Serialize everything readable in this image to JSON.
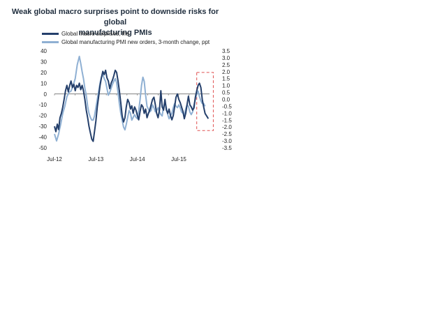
{
  "chart_data": {
    "type": "line",
    "title": [
      "Weak global macro surprises point to downside risks for global",
      "manufacturing PMIs"
    ],
    "colors": {
      "dark": "#243f6b",
      "light": "#8fb0d3",
      "highlight": "#e05050"
    },
    "y_left": {
      "min": -50,
      "max": 40,
      "ticks": [
        40,
        30,
        20,
        10,
        0,
        -10,
        -20,
        -30,
        -40,
        -50
      ]
    },
    "y_right": {
      "min": -3.5,
      "max": 3.5,
      "ticks": [
        3.5,
        3.0,
        2.5,
        2.0,
        1.5,
        1.0,
        0.5,
        0.0,
        -0.5,
        -1.0,
        -1.5,
        -2.0,
        -2.5,
        -3.0,
        -3.5
      ]
    },
    "x_ticks": [
      {
        "label": "Jul-12",
        "t": 0
      },
      {
        "label": "Jul-13",
        "t": 12
      },
      {
        "label": "Jul-14",
        "t": 24
      },
      {
        "label": "Jul-15",
        "t": 36
      }
    ],
    "x_range": [
      0,
      44.5
    ],
    "highlight_t": [
      41.2,
      46.0
    ],
    "highlight_y": [
      20,
      -34
    ],
    "series": [
      {
        "name": "Global macro surprises, lhs",
        "axis": "left",
        "points": [
          [
            0,
            -30
          ],
          [
            0.4,
            -35
          ],
          [
            0.8,
            -28
          ],
          [
            1.2,
            -33
          ],
          [
            1.6,
            -22
          ],
          [
            2.0,
            -18
          ],
          [
            2.4,
            -12
          ],
          [
            2.8,
            -5
          ],
          [
            3.2,
            3
          ],
          [
            3.6,
            8
          ],
          [
            4.0,
            2
          ],
          [
            4.4,
            8
          ],
          [
            4.8,
            12
          ],
          [
            5.2,
            6
          ],
          [
            5.6,
            9
          ],
          [
            6.0,
            3
          ],
          [
            6.4,
            8
          ],
          [
            6.8,
            6
          ],
          [
            7.2,
            10
          ],
          [
            7.6,
            4
          ],
          [
            8.0,
            8
          ],
          [
            8.4,
            3
          ],
          [
            8.8,
            -5
          ],
          [
            9.2,
            -15
          ],
          [
            9.6,
            -22
          ],
          [
            10.0,
            -30
          ],
          [
            10.4,
            -36
          ],
          [
            10.8,
            -42
          ],
          [
            11.2,
            -44
          ],
          [
            11.6,
            -35
          ],
          [
            12.0,
            -25
          ],
          [
            12.4,
            -12
          ],
          [
            12.8,
            -2
          ],
          [
            13.2,
            8
          ],
          [
            13.6,
            15
          ],
          [
            14.0,
            21
          ],
          [
            14.4,
            18
          ],
          [
            14.8,
            22
          ],
          [
            15.2,
            15
          ],
          [
            15.6,
            12
          ],
          [
            16.0,
            5
          ],
          [
            16.4,
            10
          ],
          [
            16.8,
            13
          ],
          [
            17.2,
            17
          ],
          [
            17.6,
            22
          ],
          [
            18.0,
            20
          ],
          [
            18.4,
            12
          ],
          [
            18.8,
            3
          ],
          [
            19.2,
            -8
          ],
          [
            19.6,
            -20
          ],
          [
            20.0,
            -26
          ],
          [
            20.4,
            -22
          ],
          [
            20.8,
            -12
          ],
          [
            21.2,
            -5
          ],
          [
            21.6,
            -8
          ],
          [
            22.0,
            -14
          ],
          [
            22.4,
            -11
          ],
          [
            22.8,
            -18
          ],
          [
            23.2,
            -12
          ],
          [
            23.6,
            -15
          ],
          [
            24.0,
            -20
          ],
          [
            24.4,
            -24
          ],
          [
            24.8,
            -16
          ],
          [
            25.2,
            -10
          ],
          [
            25.6,
            -12
          ],
          [
            26.0,
            -18
          ],
          [
            26.4,
            -14
          ],
          [
            26.8,
            -22
          ],
          [
            27.2,
            -18
          ],
          [
            27.6,
            -15
          ],
          [
            28.0,
            -10
          ],
          [
            28.4,
            -5
          ],
          [
            28.8,
            -3
          ],
          [
            29.2,
            -10
          ],
          [
            29.6,
            -18
          ],
          [
            30.0,
            -22
          ],
          [
            30.4,
            -15
          ],
          [
            30.8,
            3
          ],
          [
            31.2,
            -12
          ],
          [
            31.6,
            -15
          ],
          [
            32.0,
            -5
          ],
          [
            32.4,
            -15
          ],
          [
            32.8,
            -18
          ],
          [
            33.2,
            -14
          ],
          [
            33.6,
            -20
          ],
          [
            34.0,
            -24
          ],
          [
            34.4,
            -20
          ],
          [
            34.8,
            -12
          ],
          [
            35.2,
            -3
          ],
          [
            35.6,
            0
          ],
          [
            36.0,
            -5
          ],
          [
            36.4,
            -8
          ],
          [
            36.8,
            -12
          ],
          [
            37.2,
            -16
          ],
          [
            37.6,
            -23
          ],
          [
            38.0,
            -18
          ],
          [
            38.4,
            -10
          ],
          [
            38.8,
            -2
          ],
          [
            39.2,
            -10
          ],
          [
            39.6,
            -12
          ],
          [
            40.0,
            -15
          ],
          [
            40.4,
            -13
          ],
          [
            40.8,
            -3
          ],
          [
            41.2,
            3
          ],
          [
            41.6,
            8
          ],
          [
            42.0,
            10
          ],
          [
            42.4,
            6
          ],
          [
            42.8,
            -5
          ],
          [
            43.2,
            -12
          ],
          [
            43.6,
            -18
          ],
          [
            44.0,
            -20
          ],
          [
            44.4,
            -22
          ],
          [
            44.5,
            -23
          ]
        ]
      },
      {
        "name": "Global manufacturing PMI new orders, 3-month change, ppt",
        "axis": "right",
        "points": [
          [
            0,
            -2.5
          ],
          [
            0.6,
            -3.0
          ],
          [
            1.2,
            -2.5
          ],
          [
            1.8,
            -1.8
          ],
          [
            2.4,
            -1.0
          ],
          [
            3.0,
            -0.5
          ],
          [
            3.6,
            0.2
          ],
          [
            4.2,
            0.5
          ],
          [
            4.8,
            0.6
          ],
          [
            5.4,
            1.0
          ],
          [
            6.0,
            1.5
          ],
          [
            6.6,
            2.5
          ],
          [
            7.2,
            3.1
          ],
          [
            7.6,
            2.6
          ],
          [
            8.0,
            2.0
          ],
          [
            8.4,
            1.5
          ],
          [
            8.8,
            0.8
          ],
          [
            9.2,
            0.3
          ],
          [
            9.6,
            -0.5
          ],
          [
            10.0,
            -1.0
          ],
          [
            10.4,
            -1.3
          ],
          [
            10.8,
            -1.5
          ],
          [
            11.2,
            -1.5
          ],
          [
            11.6,
            -1.2
          ],
          [
            12.0,
            -0.6
          ],
          [
            12.4,
            0
          ],
          [
            12.8,
            0.6
          ],
          [
            13.2,
            1.2
          ],
          [
            13.6,
            1.6
          ],
          [
            14.0,
            1.8
          ],
          [
            14.4,
            1.5
          ],
          [
            14.8,
            1.3
          ],
          [
            15.2,
            0.8
          ],
          [
            15.6,
            0.3
          ],
          [
            16.0,
            0.5
          ],
          [
            16.4,
            0.8
          ],
          [
            16.8,
            1.1
          ],
          [
            17.2,
            1.3
          ],
          [
            17.6,
            1.5
          ],
          [
            18.0,
            1.2
          ],
          [
            18.4,
            0.5
          ],
          [
            18.8,
            -0.3
          ],
          [
            19.2,
            -1.0
          ],
          [
            19.6,
            -1.5
          ],
          [
            20.0,
            -2.0
          ],
          [
            20.4,
            -2.2
          ],
          [
            20.8,
            -1.8
          ],
          [
            21.2,
            -1.3
          ],
          [
            21.6,
            -0.8
          ],
          [
            22.0,
            -1.0
          ],
          [
            22.4,
            -1.5
          ],
          [
            22.8,
            -1.3
          ],
          [
            23.2,
            -1.1
          ],
          [
            23.6,
            -1.3
          ],
          [
            24.0,
            -1.4
          ],
          [
            24.4,
            -0.8
          ],
          [
            24.8,
            0
          ],
          [
            25.2,
            1.0
          ],
          [
            25.6,
            1.6
          ],
          [
            26.0,
            1.3
          ],
          [
            26.4,
            0.3
          ],
          [
            26.8,
            -0.5
          ],
          [
            27.2,
            -0.7
          ],
          [
            27.6,
            -0.9
          ],
          [
            28.0,
            -0.8
          ],
          [
            28.4,
            -0.4
          ],
          [
            28.8,
            -0.6
          ],
          [
            29.2,
            -0.9
          ],
          [
            29.6,
            -0.8
          ],
          [
            30.0,
            -0.6
          ],
          [
            30.4,
            -0.9
          ],
          [
            30.8,
            -1.1
          ],
          [
            31.2,
            -1.2
          ],
          [
            31.6,
            -0.5
          ],
          [
            32.0,
            -0.2
          ],
          [
            32.4,
            -0.6
          ],
          [
            32.8,
            -1.1
          ],
          [
            33.2,
            -1.4
          ],
          [
            33.6,
            -1.2
          ],
          [
            34.0,
            -1.0
          ],
          [
            34.4,
            -0.6
          ],
          [
            34.8,
            -0.3
          ],
          [
            35.2,
            -0.5
          ],
          [
            35.6,
            -0.6
          ],
          [
            36.0,
            -0.4
          ],
          [
            36.4,
            -0.6
          ],
          [
            36.8,
            -0.9
          ],
          [
            37.2,
            -1.0
          ],
          [
            37.6,
            -1.1
          ],
          [
            38.0,
            -0.7
          ],
          [
            38.4,
            -0.4
          ],
          [
            38.8,
            -0.5
          ],
          [
            39.2,
            -0.9
          ],
          [
            39.6,
            -1.1
          ],
          [
            40.0,
            -0.9
          ],
          [
            40.4,
            -0.4
          ],
          [
            40.8,
            0
          ],
          [
            41.2,
            0.4
          ],
          [
            41.6,
            0.6
          ],
          [
            42.0,
            0.2
          ],
          [
            42.4,
            -0.1
          ],
          [
            42.8,
            -0.3
          ],
          [
            43.2,
            -0.3
          ],
          [
            43.6,
            -0.5
          ]
        ]
      }
    ]
  }
}
